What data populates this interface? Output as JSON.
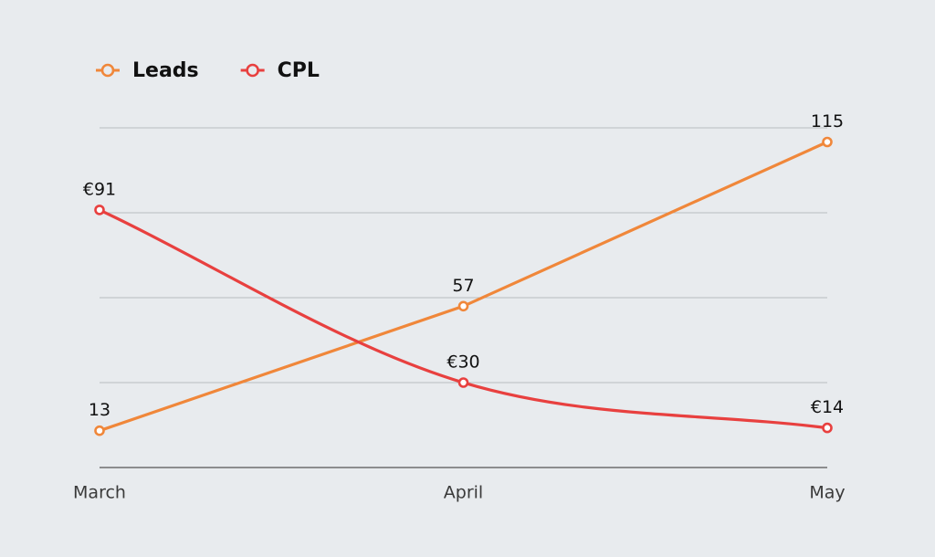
{
  "chart_data": {
    "type": "line",
    "categories": [
      "March",
      "April",
      "May"
    ],
    "series": [
      {
        "name": "Leads",
        "color": "#f0873a",
        "values": [
          13,
          57,
          115
        ],
        "smooth": false
      },
      {
        "name": "CPL",
        "color": "#e8403f",
        "values": [
          91,
          30,
          14
        ],
        "value_labels": [
          "€91",
          "€30",
          "€14"
        ],
        "smooth": true
      }
    ],
    "ylim": [
      0,
      120
    ],
    "yticks": [
      0,
      30,
      60,
      90,
      120
    ],
    "grid": true,
    "legend": "top-left"
  }
}
